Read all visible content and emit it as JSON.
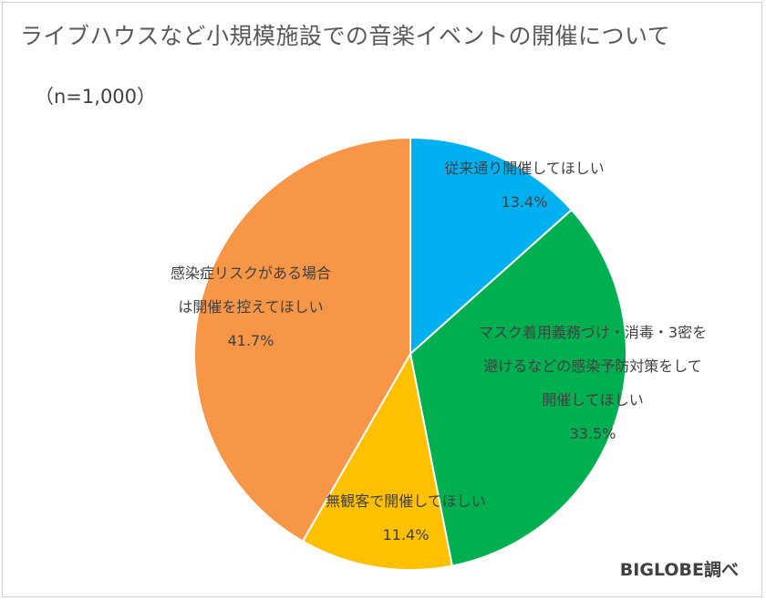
{
  "title": "ライブハウスなど小規模施設での音楽イベントの開催について",
  "subtitle": "（n=1,000）",
  "source": "BIGLOBE調べ",
  "chart_data": {
    "type": "pie",
    "slices": [
      {
        "lines": [
          "従来通り開催してほしい"
        ],
        "value": 13.4,
        "pct_label": "13.4%",
        "color": "#00b0f0"
      },
      {
        "lines": [
          "マスク着用義務づけ・消毒・3密を",
          "避けるなどの感染予防対策をして",
          "開催してほしい"
        ],
        "value": 33.5,
        "pct_label": "33.5%",
        "color": "#00b050"
      },
      {
        "lines": [
          "無観客で開催してほしい"
        ],
        "value": 11.4,
        "pct_label": "11.4%",
        "color": "#ffc000"
      },
      {
        "lines": [
          "感染症リスクがある場合",
          "は開催を控えてほしい"
        ],
        "value": 41.7,
        "pct_label": "41.7%",
        "color": "#f79646"
      }
    ]
  }
}
